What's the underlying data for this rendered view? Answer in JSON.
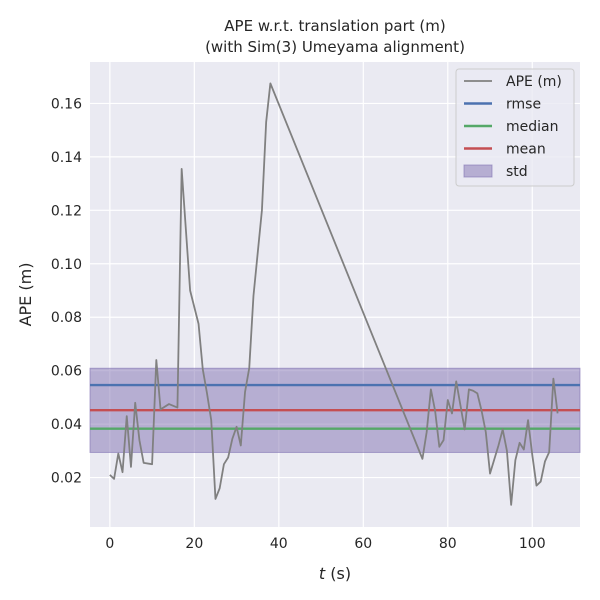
{
  "chart_data": {
    "type": "line",
    "title_line1": "APE w.r.t. translation part (m)",
    "title_line2": "(with Sim(3) Umeyama alignment)",
    "xlabel_italic": "t",
    "xlabel_rest": " (s)",
    "ylabel": "APE (m)",
    "xlim": [
      -4.7,
      111.3
    ],
    "ylim": [
      0.0015,
      0.1755
    ],
    "xticks": [
      0,
      20,
      40,
      60,
      80,
      100
    ],
    "yticks": [
      0.02,
      0.04,
      0.06,
      0.08,
      0.1,
      0.12,
      0.14,
      0.16
    ],
    "ytick_labels": [
      "0.02",
      "0.04",
      "0.06",
      "0.08",
      "0.10",
      "0.12",
      "0.14",
      "0.16"
    ],
    "grid": true,
    "legend_position": "top-right",
    "colors": {
      "background": "#eaeaf2",
      "grid": "#ffffff",
      "ape": "#808080",
      "rmse": "#4c72b0",
      "median": "#55a868",
      "mean": "#c44e52",
      "std": "#8172b2"
    },
    "series": [
      {
        "name": "APE (m)",
        "x": [
          0,
          1,
          2,
          3,
          4,
          5,
          6,
          7,
          8,
          10,
          11,
          12,
          14,
          16,
          17,
          19,
          21,
          22,
          23,
          24,
          25,
          26,
          27,
          28,
          29,
          30,
          31,
          32,
          33,
          34,
          36,
          37,
          38,
          74,
          75,
          76,
          77,
          78,
          79,
          80,
          81,
          82,
          84,
          85,
          86,
          87,
          88,
          89,
          90,
          92,
          93,
          94,
          95,
          96,
          97,
          98,
          99,
          100,
          101,
          102,
          103,
          104,
          105,
          106
        ],
        "y": [
          0.021,
          0.0195,
          0.029,
          0.022,
          0.043,
          0.024,
          0.048,
          0.034,
          0.0255,
          0.025,
          0.064,
          0.0455,
          0.0475,
          0.0462,
          0.1355,
          0.09,
          0.0775,
          0.0605,
          0.0515,
          0.0415,
          0.012,
          0.016,
          0.025,
          0.0275,
          0.0345,
          0.039,
          0.032,
          0.052,
          0.061,
          0.088,
          0.12,
          0.153,
          0.1675,
          0.027,
          0.037,
          0.053,
          0.045,
          0.0315,
          0.034,
          0.049,
          0.044,
          0.056,
          0.038,
          0.053,
          0.0525,
          0.0515,
          0.045,
          0.037,
          0.0215,
          0.032,
          0.038,
          0.03,
          0.0098,
          0.0265,
          0.033,
          0.0305,
          0.0415,
          0.0285,
          0.017,
          0.0185,
          0.026,
          0.0295,
          0.057,
          0.044
        ]
      }
    ],
    "stats": {
      "rmse": 0.0546,
      "median": 0.0383,
      "mean": 0.0452,
      "std_low": 0.0294,
      "std_high": 0.0609
    },
    "legend": [
      {
        "label": "APE (m)",
        "key": "ape",
        "kind": "line"
      },
      {
        "label": "rmse",
        "key": "rmse",
        "kind": "line"
      },
      {
        "label": "median",
        "key": "median",
        "kind": "line"
      },
      {
        "label": "mean",
        "key": "mean",
        "kind": "line"
      },
      {
        "label": "std",
        "key": "std",
        "kind": "patch"
      }
    ]
  }
}
